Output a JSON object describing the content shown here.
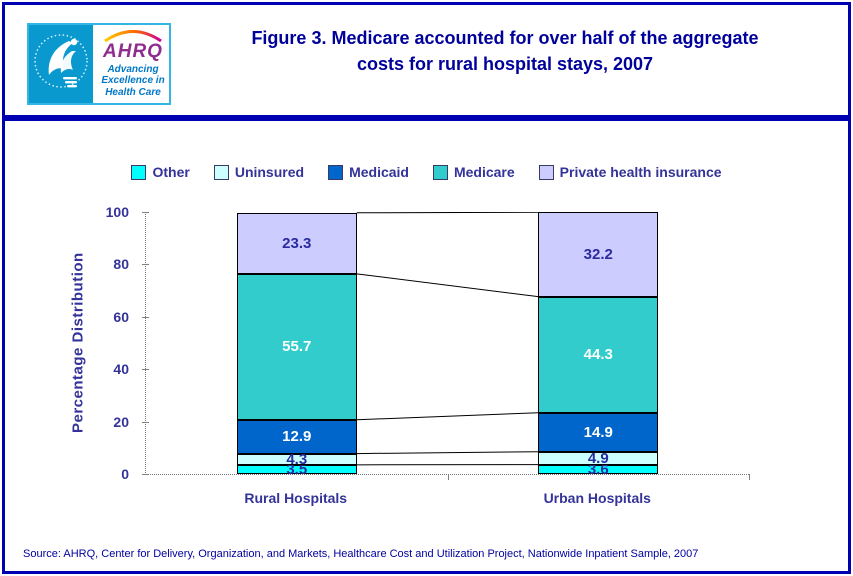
{
  "page": {
    "title": "Figure 3. Medicare accounted for over half of the aggregate costs for rural hospital stays, 2007"
  },
  "logo": {
    "acronym": "AHRQ",
    "tagline": "Advancing Excellence in Health Care"
  },
  "colors": {
    "page_border": "#0000B3",
    "title_text": "#00009B",
    "chart_text": "#333399",
    "connector_line": "#000000"
  },
  "chart_data": {
    "type": "bar",
    "stacked": true,
    "title": "Figure 3. Medicare accounted for over half of the aggregate costs for rural hospital stays, 2007",
    "categories": [
      "Rural Hospitals",
      "Urban Hospitals"
    ],
    "series": [
      {
        "name": "Other",
        "values": [
          3.5,
          3.6
        ],
        "color": "#00FFFF",
        "label_color": "#2B2BA0"
      },
      {
        "name": "Uninsured",
        "values": [
          4.3,
          4.9
        ],
        "color": "#CCFFFF",
        "label_color": "#2B2BA0"
      },
      {
        "name": "Medicaid",
        "values": [
          12.9,
          14.9
        ],
        "color": "#0066CC",
        "label_color": "#FFFFFF"
      },
      {
        "name": "Medicare",
        "values": [
          55.7,
          44.3
        ],
        "color": "#33CCCC",
        "label_color": "#FFFFFF"
      },
      {
        "name": "Private health insurance",
        "values": [
          23.3,
          32.2
        ],
        "color": "#CCCCFF",
        "label_color": "#2B2BA0"
      }
    ],
    "xlabel": "",
    "ylabel": "Percentage Distribution",
    "ylim": [
      0,
      100
    ],
    "yticks": [
      0,
      20,
      40,
      60,
      80,
      100
    ],
    "legend_position": "top",
    "grid": false,
    "connector_lines": true
  },
  "source": "Source: AHRQ, Center for Delivery, Organization, and Markets, Healthcare Cost and Utilization Project, Nationwide Inpatient Sample, 2007"
}
